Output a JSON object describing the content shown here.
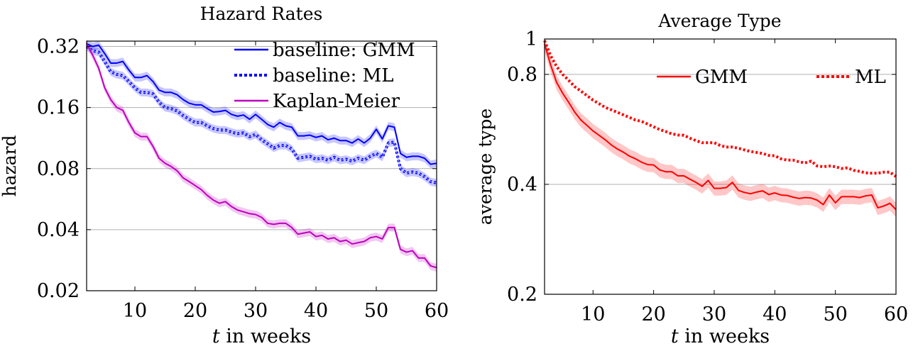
{
  "chart_data": [
    {
      "type": "line",
      "title": "Hazard Rates",
      "xlabel_italic": "t",
      "xlabel_rest": " in weeks",
      "ylabel": "hazard",
      "xlim": [
        2,
        60
      ],
      "ylim": [
        0.02,
        0.34
      ],
      "log_y": true,
      "x_ticks": [
        10,
        20,
        30,
        40,
        50,
        60
      ],
      "y_ticks": [
        0.02,
        0.04,
        0.08,
        0.16,
        0.32
      ],
      "y_tick_labels": [
        "0.02",
        "0.04",
        "0.08",
        "0.16",
        "0.32"
      ],
      "grid": "horizontal",
      "legend_position": "top-right",
      "series": [
        {
          "name": "baseline: GMM",
          "color": "#0000ff",
          "style": "solid",
          "band": true,
          "x": [
            2,
            3,
            4,
            5,
            6,
            7,
            8,
            9,
            10,
            11,
            12,
            13,
            14,
            15,
            16,
            17,
            18,
            19,
            20,
            21,
            22,
            23,
            24,
            25,
            26,
            27,
            28,
            29,
            30,
            31,
            32,
            33,
            34,
            35,
            36,
            37,
            38,
            39,
            40,
            41,
            42,
            43,
            44,
            45,
            46,
            47,
            48,
            49,
            50,
            51,
            52,
            53,
            54,
            55,
            56,
            57,
            58,
            59,
            60
          ],
          "values": [
            0.33,
            0.32,
            0.325,
            0.295,
            0.265,
            0.265,
            0.27,
            0.245,
            0.225,
            0.225,
            0.23,
            0.215,
            0.195,
            0.19,
            0.19,
            0.185,
            0.175,
            0.168,
            0.165,
            0.165,
            0.158,
            0.152,
            0.153,
            0.155,
            0.148,
            0.145,
            0.147,
            0.14,
            0.148,
            0.14,
            0.132,
            0.128,
            0.135,
            0.13,
            0.128,
            0.116,
            0.116,
            0.117,
            0.114,
            0.116,
            0.111,
            0.113,
            0.11,
            0.11,
            0.107,
            0.112,
            0.107,
            0.113,
            0.125,
            0.112,
            0.13,
            0.128,
            0.095,
            0.091,
            0.092,
            0.092,
            0.09,
            0.084,
            0.085
          ]
        },
        {
          "name": "baseline: ML",
          "color": "#0000ff",
          "style": "dotted",
          "band": true,
          "x": [
            2,
            3,
            4,
            5,
            6,
            7,
            8,
            9,
            10,
            11,
            12,
            13,
            14,
            15,
            16,
            17,
            18,
            19,
            20,
            21,
            22,
            23,
            24,
            25,
            26,
            27,
            28,
            29,
            30,
            31,
            32,
            33,
            34,
            35,
            36,
            37,
            38,
            39,
            40,
            41,
            42,
            43,
            44,
            45,
            46,
            47,
            48,
            49,
            50,
            51,
            52,
            53,
            54,
            55,
            56,
            57,
            58,
            59,
            60
          ],
          "values": [
            0.32,
            0.305,
            0.3,
            0.27,
            0.24,
            0.233,
            0.23,
            0.215,
            0.2,
            0.19,
            0.19,
            0.187,
            0.17,
            0.16,
            0.158,
            0.154,
            0.146,
            0.14,
            0.135,
            0.135,
            0.13,
            0.126,
            0.124,
            0.124,
            0.121,
            0.119,
            0.12,
            0.115,
            0.118,
            0.111,
            0.106,
            0.101,
            0.104,
            0.104,
            0.1,
            0.09,
            0.091,
            0.092,
            0.089,
            0.09,
            0.088,
            0.091,
            0.088,
            0.089,
            0.087,
            0.09,
            0.088,
            0.092,
            0.095,
            0.091,
            0.107,
            0.108,
            0.08,
            0.076,
            0.077,
            0.076,
            0.073,
            0.069,
            0.068
          ]
        },
        {
          "name": "Kaplan-Meier",
          "color": "#bf00bf",
          "style": "solid",
          "band": true,
          "x": [
            2,
            3,
            4,
            5,
            6,
            7,
            8,
            9,
            10,
            11,
            12,
            13,
            14,
            15,
            16,
            17,
            18,
            19,
            20,
            21,
            22,
            23,
            24,
            25,
            26,
            27,
            28,
            29,
            30,
            31,
            32,
            33,
            34,
            35,
            36,
            37,
            38,
            39,
            40,
            41,
            42,
            43,
            44,
            45,
            46,
            47,
            48,
            49,
            50,
            51,
            52,
            53,
            54,
            55,
            56,
            57,
            58,
            59,
            60
          ],
          "values": [
            0.33,
            0.29,
            0.25,
            0.2,
            0.175,
            0.16,
            0.155,
            0.135,
            0.12,
            0.115,
            0.115,
            0.103,
            0.09,
            0.085,
            0.082,
            0.078,
            0.072,
            0.069,
            0.066,
            0.063,
            0.059,
            0.056,
            0.054,
            0.055,
            0.052,
            0.05,
            0.049,
            0.048,
            0.0475,
            0.046,
            0.043,
            0.0425,
            0.043,
            0.043,
            0.041,
            0.038,
            0.0385,
            0.039,
            0.037,
            0.0375,
            0.036,
            0.0365,
            0.035,
            0.0355,
            0.034,
            0.0345,
            0.035,
            0.0365,
            0.037,
            0.036,
            0.041,
            0.041,
            0.032,
            0.031,
            0.0315,
            0.029,
            0.029,
            0.0265,
            0.026
          ]
        }
      ]
    },
    {
      "type": "line",
      "title": "Average Type",
      "xlabel_italic": "t",
      "xlabel_rest": " in weeks",
      "ylabel": "average type",
      "xlim": [
        2,
        60
      ],
      "ylim": [
        0.2,
        1.0
      ],
      "log_y": true,
      "x_ticks": [
        10,
        20,
        30,
        40,
        50,
        60
      ],
      "y_ticks": [
        0.2,
        0.4,
        0.8,
        1.0
      ],
      "y_tick_labels": [
        "0.2",
        "0.4",
        "0.8",
        "1"
      ],
      "grid": "horizontal",
      "legend_position": "top",
      "series": [
        {
          "name": "GMM",
          "color": "#ff0000",
          "style": "solid",
          "band": true,
          "x": [
            2,
            3,
            4,
            5,
            6,
            7,
            8,
            9,
            10,
            11,
            12,
            13,
            14,
            15,
            16,
            17,
            18,
            19,
            20,
            21,
            22,
            23,
            24,
            25,
            26,
            27,
            28,
            29,
            30,
            31,
            32,
            33,
            34,
            35,
            36,
            37,
            38,
            39,
            40,
            41,
            42,
            43,
            44,
            45,
            46,
            47,
            48,
            49,
            50,
            51,
            52,
            53,
            54,
            55,
            56,
            57,
            58,
            59,
            60
          ],
          "values": [
            0.97,
            0.85,
            0.76,
            0.71,
            0.67,
            0.63,
            0.6,
            0.58,
            0.56,
            0.545,
            0.53,
            0.513,
            0.5,
            0.49,
            0.478,
            0.47,
            0.46,
            0.453,
            0.452,
            0.438,
            0.433,
            0.433,
            0.422,
            0.422,
            0.413,
            0.405,
            0.395,
            0.41,
            0.39,
            0.39,
            0.392,
            0.405,
            0.385,
            0.38,
            0.377,
            0.381,
            0.384,
            0.375,
            0.379,
            0.374,
            0.373,
            0.369,
            0.366,
            0.368,
            0.367,
            0.362,
            0.352,
            0.374,
            0.356,
            0.37,
            0.37,
            0.37,
            0.368,
            0.372,
            0.374,
            0.345,
            0.349,
            0.355,
            0.341
          ]
        },
        {
          "name": "ML",
          "color": "#ff0000",
          "style": "dotted",
          "band": false,
          "x": [
            2,
            3,
            4,
            5,
            6,
            7,
            8,
            9,
            10,
            11,
            12,
            13,
            14,
            15,
            16,
            17,
            18,
            19,
            20,
            21,
            22,
            23,
            24,
            25,
            26,
            27,
            28,
            29,
            30,
            31,
            32,
            33,
            34,
            35,
            36,
            37,
            38,
            39,
            40,
            41,
            42,
            43,
            44,
            45,
            46,
            47,
            48,
            49,
            50,
            51,
            52,
            53,
            54,
            55,
            56,
            57,
            58,
            59,
            60
          ],
          "values": [
            0.99,
            0.9,
            0.84,
            0.8,
            0.77,
            0.74,
            0.72,
            0.7,
            0.68,
            0.665,
            0.65,
            0.64,
            0.63,
            0.62,
            0.61,
            0.6,
            0.595,
            0.585,
            0.575,
            0.565,
            0.558,
            0.55,
            0.546,
            0.545,
            0.535,
            0.527,
            0.52,
            0.52,
            0.52,
            0.511,
            0.506,
            0.506,
            0.502,
            0.497,
            0.492,
            0.489,
            0.486,
            0.48,
            0.479,
            0.47,
            0.466,
            0.466,
            0.461,
            0.458,
            0.463,
            0.449,
            0.447,
            0.449,
            0.447,
            0.442,
            0.444,
            0.437,
            0.434,
            0.43,
            0.429,
            0.429,
            0.432,
            0.432,
            0.42
          ]
        }
      ]
    }
  ]
}
